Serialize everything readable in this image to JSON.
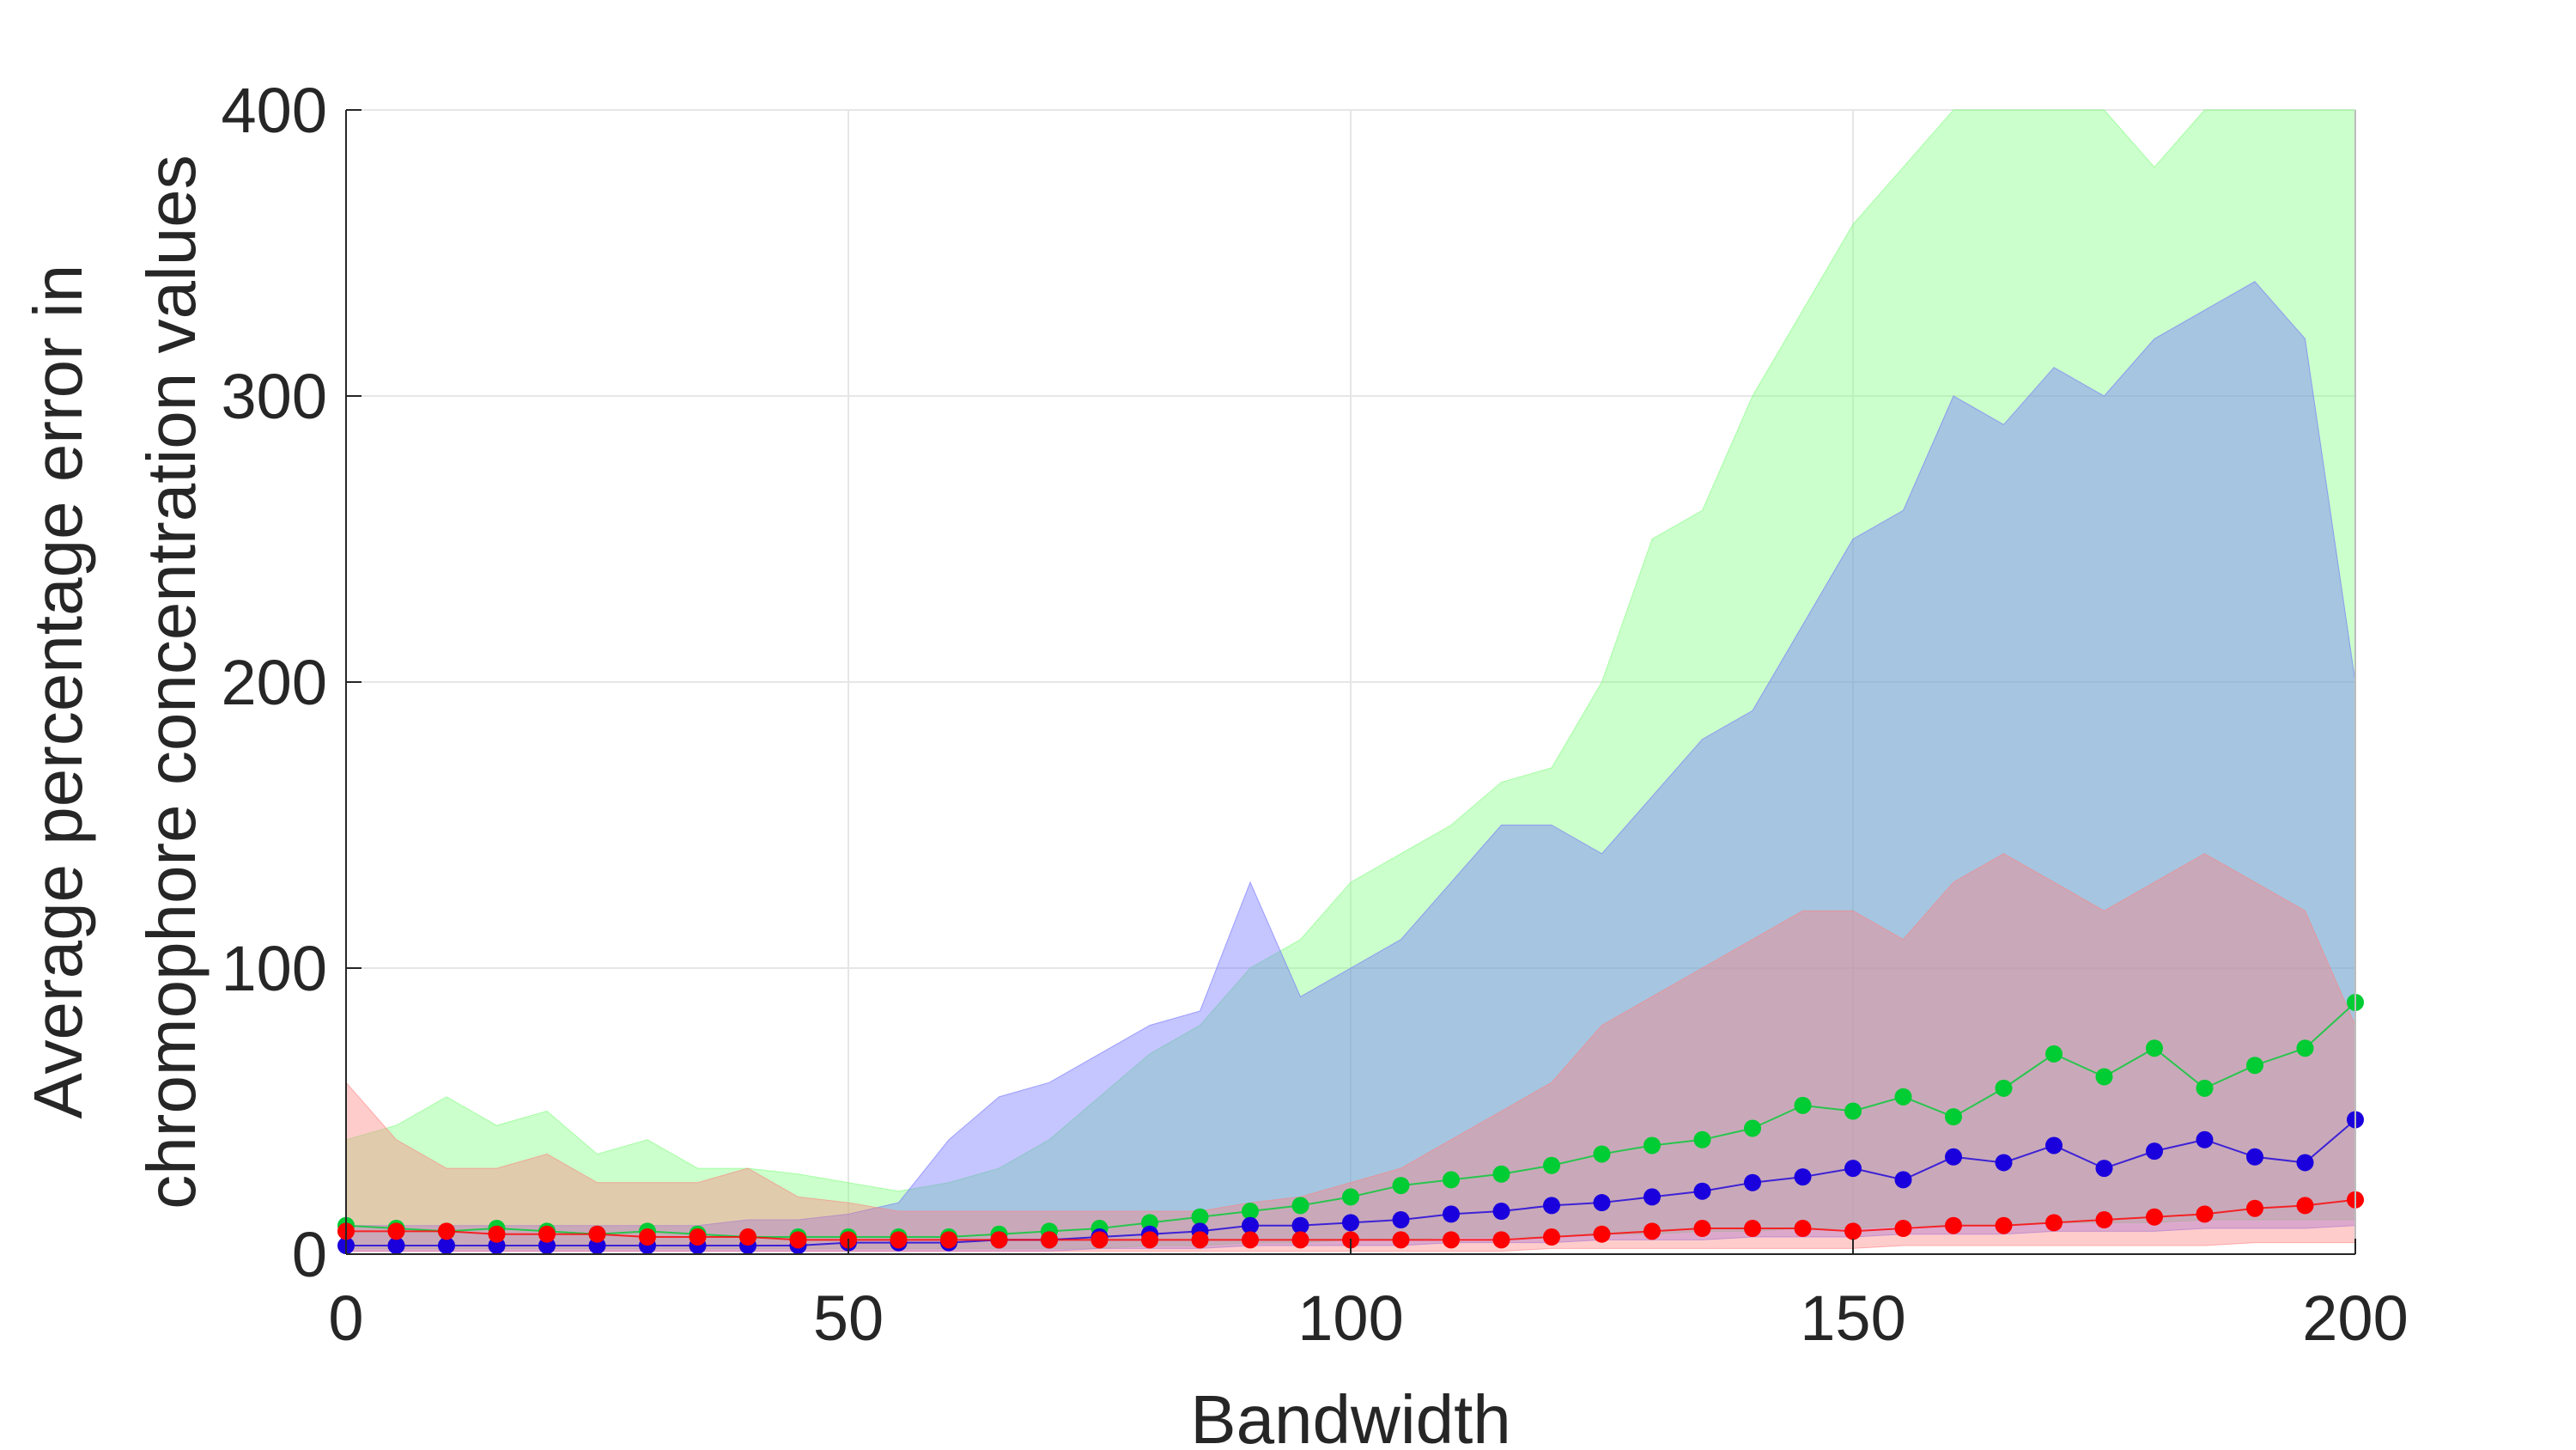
{
  "chart_data": {
    "type": "scatter",
    "title": "",
    "xlabel": "Bandwidth",
    "ylabel": [
      "Average percentage error in",
      "chromophore concentration values"
    ],
    "xlim": [
      0,
      200
    ],
    "ylim": [
      0,
      400
    ],
    "xticks": [
      0,
      50,
      100,
      150,
      200
    ],
    "yticks": [
      0,
      100,
      200,
      300,
      400
    ],
    "xtick_labels": [
      "0",
      "50",
      "100",
      "150",
      "200"
    ],
    "ytick_labels": [
      "0",
      "100",
      "200",
      "300",
      "400"
    ],
    "grid": true,
    "legend": "none",
    "series": [
      {
        "color": "#00cc33",
        "band_color": "#7dff7d",
        "x": [
          0,
          5,
          10,
          15,
          20,
          25,
          30,
          35,
          40,
          45,
          50,
          55,
          60,
          65,
          70,
          75,
          80,
          85,
          90,
          95,
          100,
          105,
          110,
          115,
          120,
          125,
          130,
          135,
          140,
          145,
          150,
          155,
          160,
          165,
          170,
          175,
          180,
          185,
          190,
          195,
          200
        ],
        "mean": [
          10,
          9,
          8,
          9,
          8,
          7,
          8,
          7,
          6,
          6,
          6,
          6,
          6,
          7,
          8,
          9,
          11,
          13,
          15,
          17,
          20,
          24,
          26,
          28,
          31,
          35,
          38,
          40,
          44,
          52,
          50,
          55,
          48,
          58,
          70,
          62,
          72,
          58,
          66,
          72,
          88
        ],
        "upper": [
          40,
          45,
          55,
          45,
          50,
          35,
          40,
          30,
          30,
          28,
          25,
          22,
          25,
          30,
          40,
          55,
          70,
          80,
          100,
          110,
          130,
          140,
          150,
          165,
          170,
          200,
          250,
          260,
          300,
          330,
          360,
          380,
          400,
          420,
          420,
          400,
          380,
          400,
          420,
          420,
          420
        ],
        "lower": [
          2,
          2,
          2,
          2,
          2,
          2,
          2,
          2,
          2,
          2,
          2,
          2,
          2,
          2,
          2,
          2,
          3,
          3,
          4,
          4,
          5,
          5,
          6,
          6,
          6,
          7,
          7,
          8,
          8,
          9,
          9,
          10,
          10,
          10,
          11,
          11,
          11,
          12,
          12,
          12,
          12
        ]
      },
      {
        "color": "#1a00dd",
        "band_color": "#6f6fff",
        "x": [
          0,
          5,
          10,
          15,
          20,
          25,
          30,
          35,
          40,
          45,
          50,
          55,
          60,
          65,
          70,
          75,
          80,
          85,
          90,
          95,
          100,
          105,
          110,
          115,
          120,
          125,
          130,
          135,
          140,
          145,
          150,
          155,
          160,
          165,
          170,
          175,
          180,
          185,
          190,
          195,
          200
        ],
        "mean": [
          3,
          3,
          3,
          3,
          3,
          3,
          3,
          3,
          3,
          3,
          4,
          4,
          4,
          5,
          5,
          6,
          7,
          8,
          10,
          10,
          11,
          12,
          14,
          15,
          17,
          18,
          20,
          22,
          25,
          27,
          30,
          26,
          34,
          32,
          38,
          30,
          36,
          40,
          34,
          32,
          47
        ],
        "upper": [
          10,
          10,
          10,
          10,
          10,
          10,
          10,
          10,
          12,
          12,
          14,
          18,
          40,
          55,
          60,
          70,
          80,
          85,
          130,
          90,
          100,
          110,
          130,
          150,
          150,
          140,
          160,
          180,
          190,
          220,
          250,
          260,
          300,
          290,
          310,
          300,
          320,
          330,
          340,
          320,
          200
        ],
        "lower": [
          1,
          1,
          1,
          1,
          1,
          1,
          1,
          1,
          1,
          1,
          1,
          1,
          1,
          1,
          1,
          2,
          2,
          2,
          3,
          3,
          3,
          3,
          4,
          4,
          4,
          5,
          5,
          5,
          6,
          6,
          6,
          7,
          7,
          7,
          8,
          8,
          8,
          9,
          9,
          9,
          10
        ]
      },
      {
        "color": "#ff0000",
        "band_color": "#ff8080",
        "x": [
          0,
          5,
          10,
          15,
          20,
          25,
          30,
          35,
          40,
          45,
          50,
          55,
          60,
          65,
          70,
          75,
          80,
          85,
          90,
          95,
          100,
          105,
          110,
          115,
          120,
          125,
          130,
          135,
          140,
          145,
          150,
          155,
          160,
          165,
          170,
          175,
          180,
          185,
          190,
          195,
          200
        ],
        "mean": [
          8,
          8,
          8,
          7,
          7,
          7,
          6,
          6,
          6,
          5,
          5,
          5,
          5,
          5,
          5,
          5,
          5,
          5,
          5,
          5,
          5,
          5,
          5,
          5,
          6,
          7,
          8,
          9,
          9,
          9,
          8,
          9,
          10,
          10,
          11,
          12,
          13,
          14,
          16,
          17,
          19
        ],
        "upper": [
          60,
          40,
          30,
          30,
          35,
          25,
          25,
          25,
          30,
          20,
          18,
          15,
          15,
          15,
          15,
          15,
          15,
          15,
          18,
          20,
          25,
          30,
          40,
          50,
          60,
          80,
          90,
          100,
          110,
          120,
          120,
          110,
          130,
          140,
          130,
          120,
          130,
          140,
          130,
          120,
          80
        ],
        "lower": [
          1,
          1,
          1,
          1,
          1,
          1,
          1,
          1,
          1,
          1,
          1,
          1,
          1,
          1,
          1,
          1,
          1,
          1,
          1,
          1,
          1,
          1,
          1,
          1,
          2,
          2,
          2,
          2,
          2,
          2,
          2,
          3,
          3,
          3,
          3,
          3,
          3,
          3,
          4,
          4,
          4
        ]
      }
    ]
  }
}
